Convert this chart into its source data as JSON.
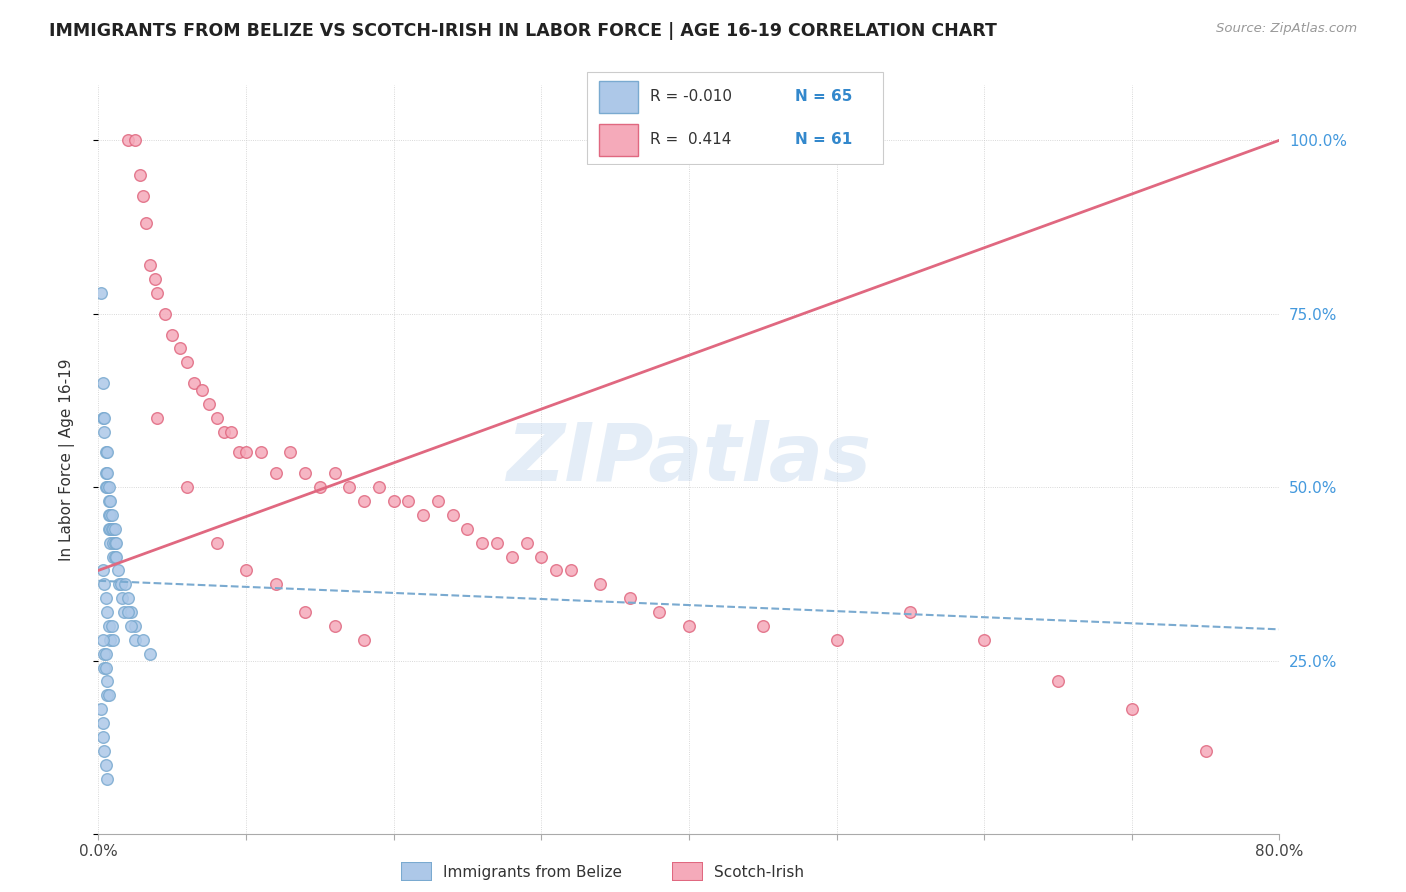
{
  "title": "IMMIGRANTS FROM BELIZE VS SCOTCH-IRISH IN LABOR FORCE | AGE 16-19 CORRELATION CHART",
  "source": "Source: ZipAtlas.com",
  "ylabel": "In Labor Force | Age 16-19",
  "yticks": [
    0.0,
    0.25,
    0.5,
    0.75,
    1.0
  ],
  "ytick_labels": [
    "",
    "25.0%",
    "50.0%",
    "75.0%",
    "100.0%"
  ],
  "xlim": [
    0.0,
    0.8
  ],
  "ylim": [
    0.0,
    1.08
  ],
  "color_belize": "#adc8e8",
  "color_belize_edge": "#7aaad0",
  "color_scotch": "#f5aaba",
  "color_scotch_edge": "#e06880",
  "color_belize_line": "#7aaad0",
  "color_scotch_line": "#e06880",
  "watermark": "ZIPatlas",
  "belize_x": [
    0.002,
    0.003,
    0.003,
    0.004,
    0.004,
    0.005,
    0.005,
    0.005,
    0.006,
    0.006,
    0.006,
    0.007,
    0.007,
    0.007,
    0.007,
    0.008,
    0.008,
    0.008,
    0.008,
    0.009,
    0.009,
    0.01,
    0.01,
    0.01,
    0.011,
    0.011,
    0.011,
    0.012,
    0.012,
    0.013,
    0.014,
    0.015,
    0.016,
    0.017,
    0.018,
    0.02,
    0.022,
    0.025,
    0.003,
    0.004,
    0.005,
    0.006,
    0.007,
    0.008,
    0.009,
    0.01,
    0.003,
    0.004,
    0.004,
    0.005,
    0.005,
    0.006,
    0.006,
    0.007,
    0.002,
    0.003,
    0.003,
    0.004,
    0.005,
    0.006,
    0.02,
    0.022,
    0.025,
    0.03,
    0.035
  ],
  "belize_y": [
    0.78,
    0.65,
    0.6,
    0.6,
    0.58,
    0.55,
    0.52,
    0.5,
    0.55,
    0.52,
    0.5,
    0.5,
    0.48,
    0.46,
    0.44,
    0.48,
    0.46,
    0.44,
    0.42,
    0.46,
    0.44,
    0.44,
    0.42,
    0.4,
    0.44,
    0.42,
    0.4,
    0.42,
    0.4,
    0.38,
    0.36,
    0.36,
    0.34,
    0.32,
    0.36,
    0.34,
    0.32,
    0.3,
    0.38,
    0.36,
    0.34,
    0.32,
    0.3,
    0.28,
    0.3,
    0.28,
    0.28,
    0.26,
    0.24,
    0.26,
    0.24,
    0.22,
    0.2,
    0.2,
    0.18,
    0.16,
    0.14,
    0.12,
    0.1,
    0.08,
    0.32,
    0.3,
    0.28,
    0.28,
    0.26
  ],
  "scotch_x": [
    0.02,
    0.025,
    0.028,
    0.03,
    0.032,
    0.035,
    0.038,
    0.04,
    0.045,
    0.05,
    0.055,
    0.06,
    0.065,
    0.07,
    0.075,
    0.08,
    0.085,
    0.09,
    0.095,
    0.1,
    0.11,
    0.12,
    0.13,
    0.14,
    0.15,
    0.16,
    0.17,
    0.18,
    0.19,
    0.2,
    0.21,
    0.22,
    0.23,
    0.24,
    0.25,
    0.26,
    0.27,
    0.28,
    0.29,
    0.3,
    0.31,
    0.32,
    0.34,
    0.36,
    0.38,
    0.4,
    0.45,
    0.5,
    0.55,
    0.6,
    0.65,
    0.7,
    0.75,
    0.04,
    0.06,
    0.08,
    0.1,
    0.12,
    0.14,
    0.16,
    0.18
  ],
  "scotch_y": [
    1.0,
    1.0,
    0.95,
    0.92,
    0.88,
    0.82,
    0.8,
    0.78,
    0.75,
    0.72,
    0.7,
    0.68,
    0.65,
    0.64,
    0.62,
    0.6,
    0.58,
    0.58,
    0.55,
    0.55,
    0.55,
    0.52,
    0.55,
    0.52,
    0.5,
    0.52,
    0.5,
    0.48,
    0.5,
    0.48,
    0.48,
    0.46,
    0.48,
    0.46,
    0.44,
    0.42,
    0.42,
    0.4,
    0.42,
    0.4,
    0.38,
    0.38,
    0.36,
    0.34,
    0.32,
    0.3,
    0.3,
    0.28,
    0.32,
    0.28,
    0.22,
    0.18,
    0.12,
    0.6,
    0.5,
    0.42,
    0.38,
    0.36,
    0.32,
    0.3,
    0.28
  ],
  "belize_trend": [
    0.0,
    0.8
  ],
  "belize_trend_y": [
    0.365,
    0.295
  ],
  "scotch_trend": [
    0.0,
    0.8
  ],
  "scotch_trend_y": [
    0.38,
    1.0
  ]
}
